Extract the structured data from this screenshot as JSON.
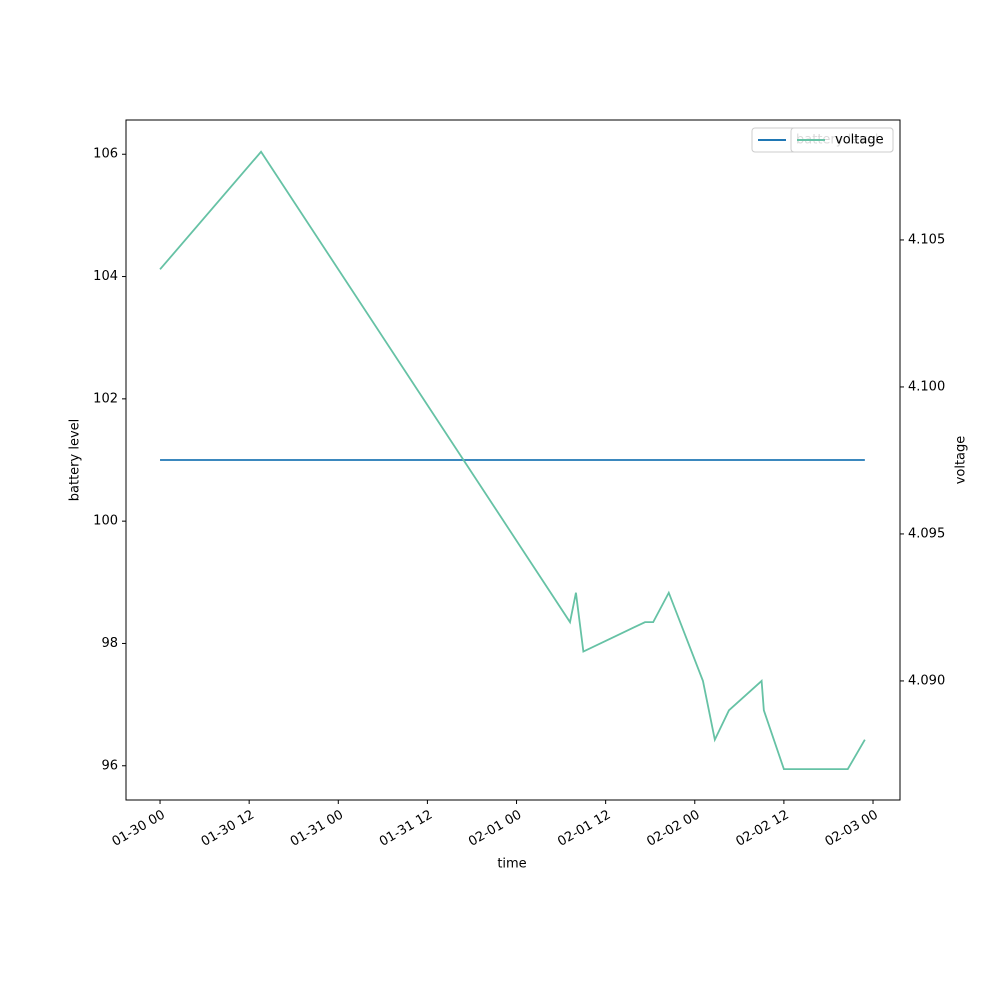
{
  "chart_data": {
    "type": "line",
    "xlabel": "time",
    "ylabel": "battery level",
    "y2label": "voltage",
    "x": [
      "01-30 00:00",
      "01-30 13:36",
      "02-01 07:12",
      "02-01 08:00",
      "02-01 09:00",
      "02-01 17:18",
      "02-01 18:24",
      "02-01 20:30",
      "02-02 01:06",
      "02-02 02:42",
      "02-02 04:36",
      "02-02 09:00",
      "02-02 09:18",
      "02-02 12:00",
      "02-02 20:36",
      "02-02 22:54"
    ],
    "series": [
      {
        "name": "battery level",
        "color": "#1f77b4",
        "values": [
          101,
          101,
          101,
          101,
          101,
          101,
          101,
          101,
          101,
          101,
          101,
          101,
          101,
          101,
          101,
          101
        ]
      },
      {
        "name": "voltage",
        "color": "#66c2a5",
        "axis": "y2",
        "values": [
          4.104,
          4.108,
          4.092,
          4.093,
          4.091,
          4.092,
          4.092,
          4.093,
          4.09,
          4.088,
          4.089,
          4.09,
          4.089,
          4.087,
          4.087,
          4.088
        ]
      }
    ],
    "xlim": [
      "01-29 19:25",
      "02-03 03:38"
    ],
    "xticks": [
      {
        "value": "01-30 00:00",
        "label": "01-30 00"
      },
      {
        "value": "01-30 12:00",
        "label": "01-30 12"
      },
      {
        "value": "01-31 00:00",
        "label": "01-31 00"
      },
      {
        "value": "01-31 12:00",
        "label": "01-31 12"
      },
      {
        "value": "02-01 00:00",
        "label": "02-01 00"
      },
      {
        "value": "02-01 12:00",
        "label": "02-01 12"
      },
      {
        "value": "02-02 00:00",
        "label": "02-02 00"
      },
      {
        "value": "02-02 12:00",
        "label": "02-02 12"
      },
      {
        "value": "02-03 00:00",
        "label": "02-03 00"
      }
    ],
    "ylim": [
      95.44,
      106.56
    ],
    "yticks": [
      96,
      98,
      100,
      102,
      104,
      106
    ],
    "y2lim": [
      4.08595,
      4.10908
    ],
    "y2ticks": [
      {
        "value": 4.09,
        "label": "4.090"
      },
      {
        "value": 4.095,
        "label": "4.095"
      },
      {
        "value": 4.1,
        "label": "4.100"
      },
      {
        "value": 4.105,
        "label": "4.105"
      }
    ],
    "legend": "upper right"
  }
}
